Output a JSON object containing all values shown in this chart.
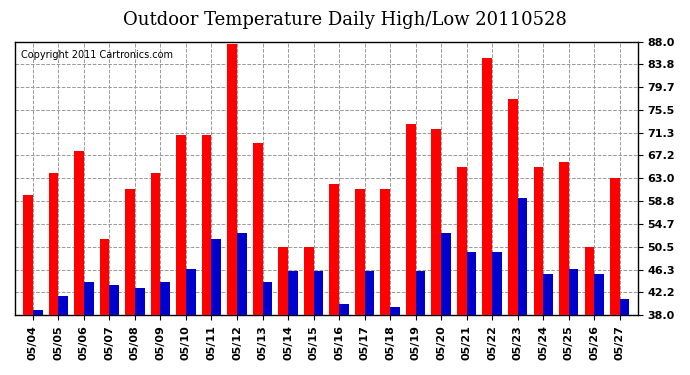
{
  "title": "Outdoor Temperature Daily High/Low 20110528",
  "copyright": "Copyright 2011 Cartronics.com",
  "dates": [
    "05/04",
    "05/05",
    "05/06",
    "05/07",
    "05/08",
    "05/09",
    "05/10",
    "05/11",
    "05/12",
    "05/13",
    "05/14",
    "05/15",
    "05/16",
    "05/17",
    "05/18",
    "05/19",
    "05/20",
    "05/21",
    "05/22",
    "05/23",
    "05/24",
    "05/25",
    "05/26",
    "05/27"
  ],
  "highs": [
    60.0,
    64.0,
    68.0,
    52.0,
    61.0,
    64.0,
    71.0,
    71.0,
    87.5,
    69.5,
    50.5,
    50.5,
    62.0,
    61.0,
    61.0,
    73.0,
    72.0,
    65.0,
    85.0,
    77.5,
    65.0,
    66.0,
    50.5,
    63.0
  ],
  "lows": [
    39.0,
    41.5,
    44.0,
    43.5,
    43.0,
    44.0,
    46.5,
    52.0,
    53.0,
    44.0,
    46.0,
    46.0,
    40.0,
    46.0,
    39.5,
    46.0,
    53.0,
    49.5,
    49.5,
    59.5,
    45.5,
    46.5,
    45.5,
    41.0
  ],
  "high_color": "#ff0000",
  "low_color": "#0000cc",
  "bg_color": "#ffffff",
  "plot_bg_color": "#ffffff",
  "grid_color": "#999999",
  "ymin": 38.0,
  "ymax": 88.0,
  "yticks": [
    38.0,
    42.2,
    46.3,
    50.5,
    54.7,
    58.8,
    63.0,
    67.2,
    71.3,
    75.5,
    79.7,
    83.8,
    88.0
  ],
  "title_fontsize": 13,
  "tick_fontsize": 8,
  "copyright_fontsize": 7,
  "bar_width": 0.38
}
